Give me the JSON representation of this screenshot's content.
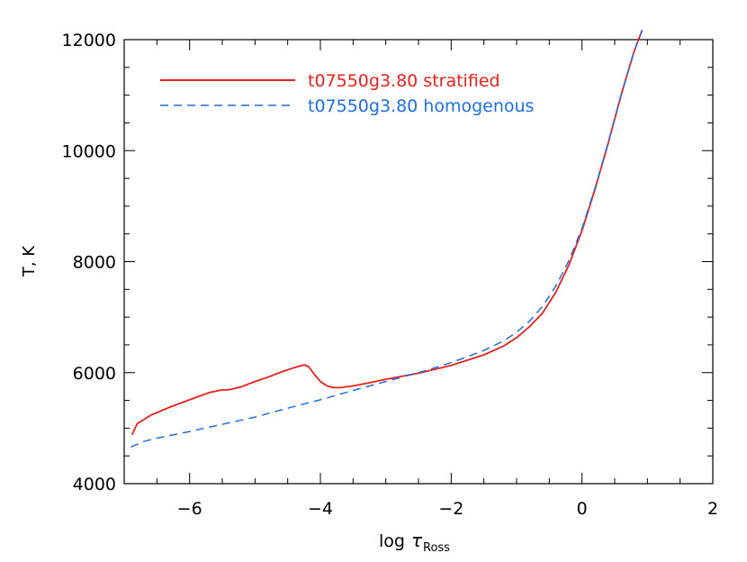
{
  "chart_data": {
    "type": "line",
    "title": "",
    "xlabel_main": "log",
    "xlabel_tau": "τ",
    "xlabel_sub": "Ross",
    "ylabel": "T, K",
    "xlim": [
      -7,
      2
    ],
    "ylim": [
      4000,
      12000
    ],
    "xticks": [
      -6,
      -4,
      -2,
      0,
      2
    ],
    "xtick_labels": [
      "−6",
      "−4",
      "−2",
      "0",
      "2"
    ],
    "yticks": [
      4000,
      6000,
      8000,
      10000,
      12000
    ],
    "ytick_labels": [
      "4000",
      "6000",
      "8000",
      "10000",
      "12000"
    ],
    "legend_position": "top-left",
    "grid": false,
    "series": [
      {
        "name": "t07550g3.80 stratified",
        "color": "#e8211c",
        "dash": "solid",
        "x": [
          -6.88,
          -6.8,
          -6.6,
          -6.3,
          -6.0,
          -5.7,
          -5.5,
          -5.4,
          -5.2,
          -5.0,
          -4.8,
          -4.6,
          -4.4,
          -4.25,
          -4.18,
          -4.1,
          -4.0,
          -3.9,
          -3.8,
          -3.7,
          -3.5,
          -3.2,
          -3.0,
          -2.5,
          -2.0,
          -1.5,
          -1.2,
          -1.0,
          -0.8,
          -0.6,
          -0.4,
          -0.2,
          0.0,
          0.2,
          0.4,
          0.6,
          0.8,
          0.92
        ],
        "y": [
          4880,
          5080,
          5230,
          5380,
          5510,
          5640,
          5690,
          5690,
          5750,
          5840,
          5920,
          6010,
          6090,
          6140,
          6110,
          5980,
          5840,
          5760,
          5730,
          5730,
          5760,
          5830,
          5880,
          5990,
          6130,
          6320,
          6480,
          6630,
          6830,
          7080,
          7450,
          7940,
          8560,
          9310,
          10130,
          11010,
          11800,
          12170
        ]
      },
      {
        "name": "t07550g3.80 homogenous",
        "color": "#1f6fe0",
        "dash": "dashed",
        "x": [
          -6.9,
          -6.7,
          -6.5,
          -6.0,
          -5.5,
          -5.0,
          -4.5,
          -4.0,
          -3.5,
          -3.0,
          -2.5,
          -2.0,
          -1.5,
          -1.2,
          -1.0,
          -0.8,
          -0.6,
          -0.4,
          -0.2,
          0.0,
          0.2,
          0.4,
          0.6,
          0.8,
          0.92
        ],
        "y": [
          4660,
          4760,
          4820,
          4940,
          5070,
          5200,
          5360,
          5510,
          5680,
          5840,
          6000,
          6180,
          6400,
          6570,
          6730,
          6930,
          7200,
          7560,
          8020,
          8600,
          9330,
          10140,
          11020,
          11800,
          12170
        ]
      }
    ]
  }
}
